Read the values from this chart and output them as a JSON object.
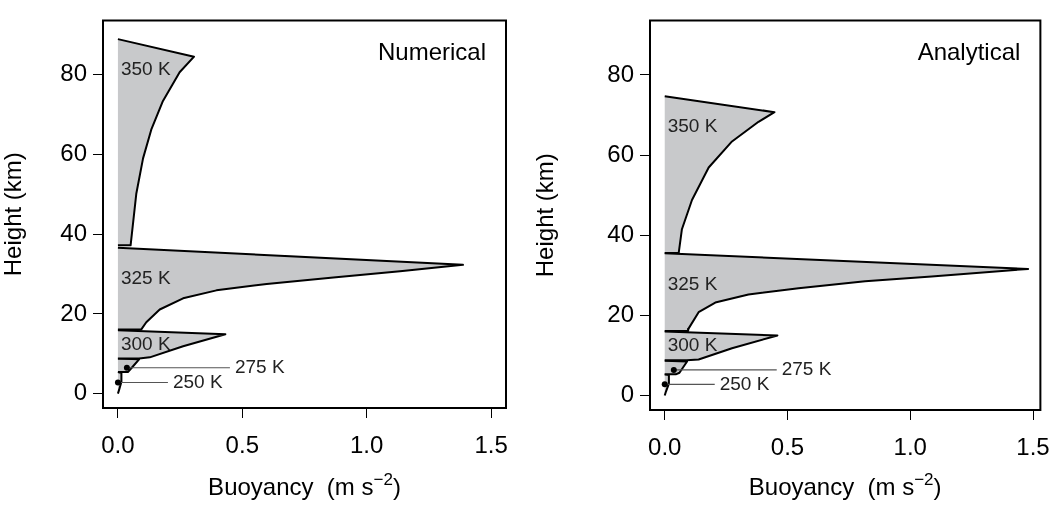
{
  "chart_data": [
    {
      "type": "area",
      "title": "Numerical",
      "xlabel": "Buoyancy  (m s$^{−2}$)",
      "ylabel": "Height (km)",
      "xlim": [
        -0.06,
        1.56
      ],
      "ylim": [
        -3.6,
        93.6
      ],
      "xticks": [
        {
          "value": 0,
          "label": "0.0"
        },
        {
          "value": 0.5,
          "label": "0.5"
        },
        {
          "value": 1,
          "label": "1.0"
        },
        {
          "value": 1.5,
          "label": "1.5"
        }
      ],
      "yticks": [
        0,
        20,
        40,
        60,
        80
      ],
      "annotations": [
        {
          "text": "275 K",
          "x": 0.036,
          "y": 6.5
        },
        {
          "text": "250 K",
          "x": 0,
          "y": 2.8
        }
      ],
      "series": [
        {
          "name": "350 K",
          "color": "#c8c9cb",
          "x": [
            0,
            0.306,
            0.248,
            0.181,
            0.134,
            0.101,
            0.074,
            0.051,
            0
          ],
          "values": [
            88.9,
            84.5,
            80.6,
            73.4,
            66.2,
            59,
            50.2,
            37.2,
            37.2
          ]
        },
        {
          "name": "325 K",
          "color": "#c7c8ca",
          "x": [
            0,
            1.387,
            1.134,
            0.866,
            0.598,
            0.396,
            0.262,
            0.168,
            0.114,
            0.094,
            0
          ],
          "values": [
            36.6,
            32.3,
            30.7,
            29.1,
            27.5,
            25.9,
            23.9,
            21.1,
            17.9,
            16.1,
            16.1
          ]
        },
        {
          "name": "300 K",
          "color": "#c9cacc",
          "x": [
            0,
            0.432,
            0.262,
            0.128,
            0.085,
            0
          ],
          "values": [
            15.9,
            14.9,
            11.9,
            9.1,
            8.8,
            8.8
          ]
        },
        {
          "color": "#c6c7c9",
          "x": [
            0,
            0.085,
            0.06,
            0.04,
            0
          ],
          "values": [
            8.8,
            8.6,
            6.8,
            5.4,
            5.4
          ]
        },
        {
          "color": "#cacbcd",
          "x": [
            0,
            0.014,
            0.014,
            0.005,
            0
          ],
          "values": [
            5.4,
            5.2,
            3,
            1,
            0
          ]
        }
      ]
    },
    {
      "type": "area",
      "title": "Analytical",
      "xlabel": "Buoyancy  (m s$^{−2}$)",
      "ylabel": "Height (km)",
      "xlim": [
        -0.06,
        1.53
      ],
      "ylim": [
        -3.6,
        93.6
      ],
      "xticks": [
        {
          "value": 0,
          "label": "0.0"
        },
        {
          "value": 0.5,
          "label": "0.5"
        },
        {
          "value": 1,
          "label": "1.0"
        },
        {
          "value": 1.5,
          "label": "1.5"
        }
      ],
      "yticks": [
        0,
        20,
        40,
        60,
        80
      ],
      "annotations": [
        {
          "text": "275 K",
          "x": 0.037,
          "y": 6.4
        },
        {
          "text": "250 K",
          "x": 0,
          "y": 2.8
        }
      ],
      "series": [
        {
          "name": "350 K",
          "color": "#c8c9cb",
          "x": [
            0,
            0.447,
            0.382,
            0.274,
            0.179,
            0.111,
            0.07,
            0.057,
            0
          ],
          "values": [
            74.7,
            70.7,
            68.3,
            63.4,
            56.9,
            48.8,
            41.5,
            35.6,
            35.6
          ]
        },
        {
          "name": "325 K",
          "color": "#c7c8ca",
          "x": [
            0,
            1.48,
            1.087,
            0.816,
            0.545,
            0.341,
            0.206,
            0.138,
            0.097,
            0.095,
            0
          ],
          "values": [
            35.5,
            31.6,
            29.7,
            28.5,
            26.8,
            25.2,
            23.2,
            20.8,
            16.7,
            16.1,
            16.1
          ]
        },
        {
          "name": "300 K",
          "color": "#c9cacc",
          "x": [
            0,
            0.459,
            0.274,
            0.138,
            0.09,
            0
          ],
          "values": [
            16,
            15,
            11.8,
            9,
            8.8,
            8.8
          ]
        },
        {
          "color": "#c6c7c9",
          "x": [
            0,
            0.091,
            0.06,
            0.045,
            0
          ],
          "values": [
            8.7,
            8.5,
            5.7,
            5.3,
            5.3
          ]
        },
        {
          "color": "#cacbcd",
          "x": [
            0,
            0.017,
            0.017,
            0.005,
            0
          ],
          "values": [
            5.3,
            5.1,
            3,
            1,
            0
          ]
        }
      ]
    }
  ]
}
